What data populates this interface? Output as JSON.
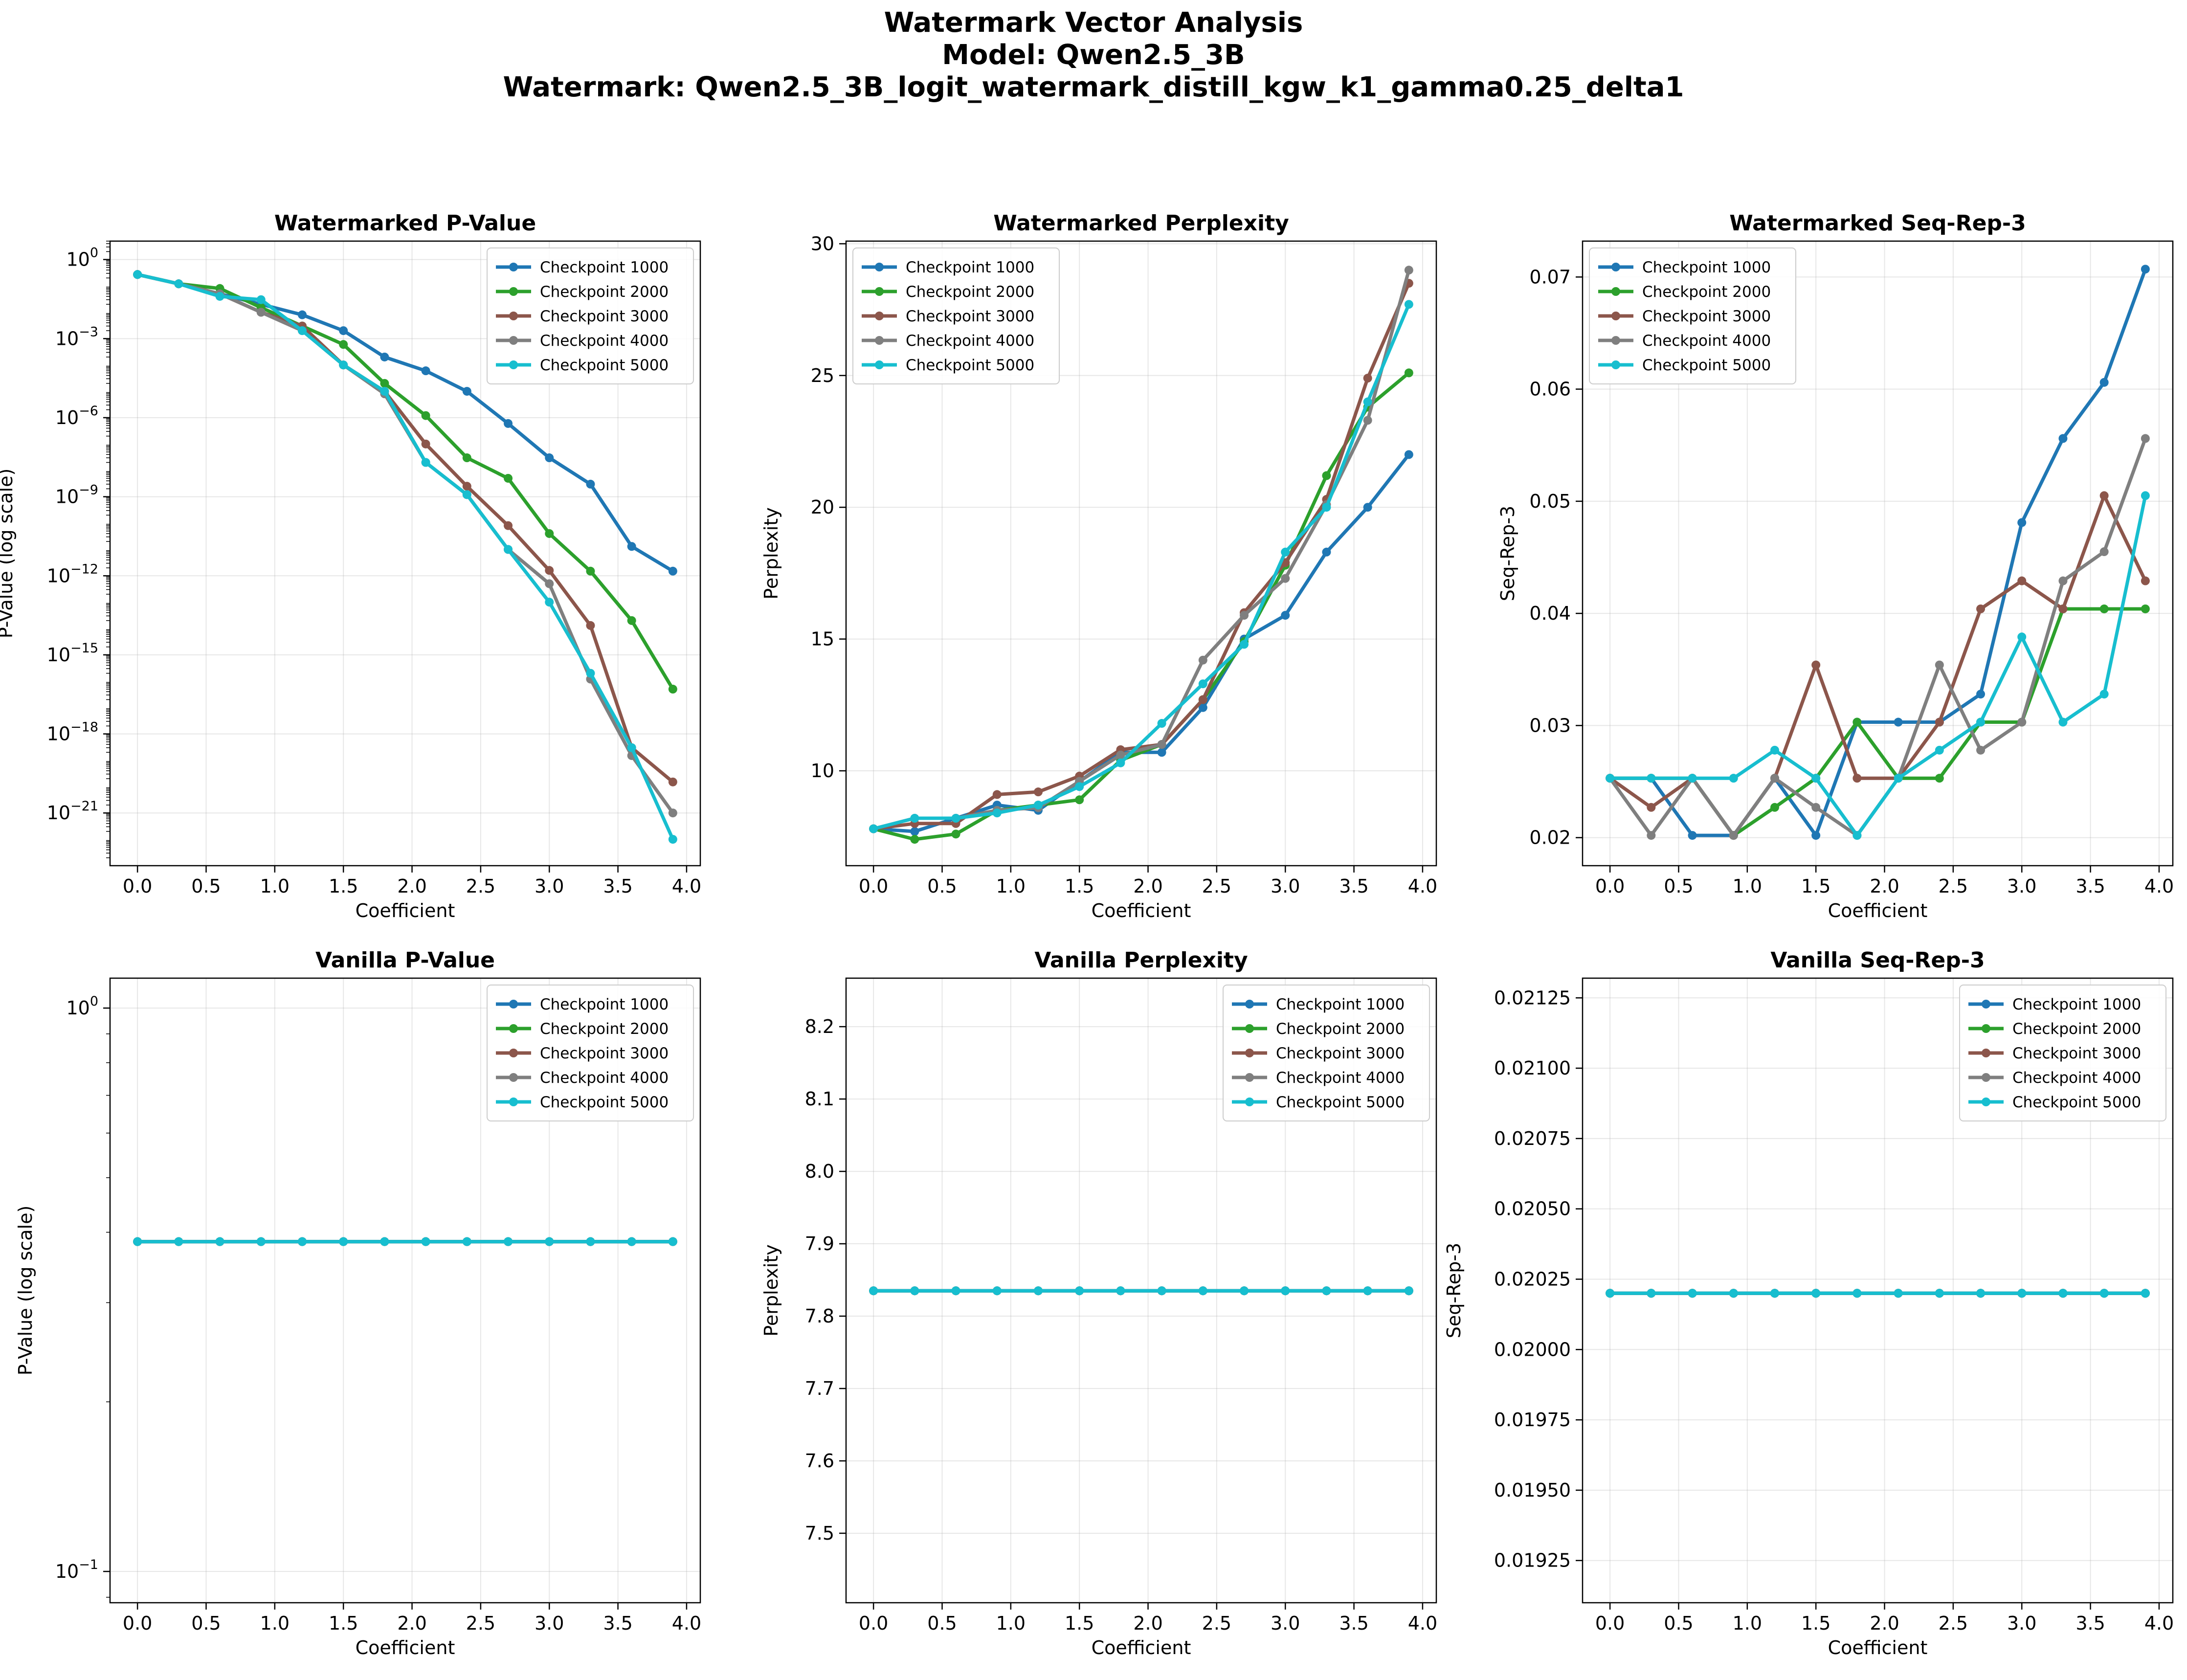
{
  "figure": {
    "title_lines": [
      "Watermark Vector Analysis",
      "Model: Qwen2.5_3B",
      "Watermark: Qwen2.5_3B_logit_watermark_distill_kgw_k1_gamma0.25_delta1"
    ]
  },
  "colors": {
    "Checkpoint 1000": "#1f77b4",
    "Checkpoint 2000": "#2ca02c",
    "Checkpoint 3000": "#8c564b",
    "Checkpoint 4000": "#7f7f7f",
    "Checkpoint 5000": "#17becf"
  },
  "chart_data": [
    {
      "id": "wm-pvalue",
      "type": "line",
      "title": "Watermarked P-Value",
      "xlabel": "Coefficient",
      "ylabel": "P-Value (log scale)",
      "yscale": "log",
      "xlim": [
        -0.2,
        4.1
      ],
      "ylim": [
        1e-23,
        5
      ],
      "xticks": [
        0,
        0.5,
        1,
        1.5,
        2,
        2.5,
        3,
        3.5,
        4
      ],
      "xtick_labels": [
        "0.0",
        "0.5",
        "1.0",
        "1.5",
        "2.0",
        "2.5",
        "3.0",
        "3.5",
        "4.0"
      ],
      "yticks": [
        1,
        0.001,
        1e-06,
        1e-09,
        1e-12,
        1e-15,
        1e-18,
        1e-21
      ],
      "ytick_labels": [
        "10^0",
        "10^-3",
        "10^-6",
        "10^-9",
        "10^-12",
        "10^-15",
        "10^-18",
        "10^-21"
      ],
      "grid": true,
      "legend_position": "top-right",
      "x": [
        0,
        0.3,
        0.6,
        0.9,
        1.2,
        1.5,
        1.8,
        2.1,
        2.4,
        2.7,
        3.0,
        3.3,
        3.6,
        3.9
      ],
      "series": [
        {
          "name": "Checkpoint 1000",
          "values": [
            0.27,
            0.12,
            0.05,
            0.02,
            0.008,
            0.002,
            0.0002,
            6e-05,
            1e-05,
            6e-07,
            3e-08,
            3e-09,
            1.3e-11,
            1.5e-12
          ]
        },
        {
          "name": "Checkpoint 2000",
          "values": [
            0.27,
            0.12,
            0.08,
            0.015,
            0.003,
            0.0006,
            2e-05,
            1.2e-06,
            3e-08,
            5e-09,
            4e-11,
            1.5e-12,
            2e-14,
            5e-17
          ]
        },
        {
          "name": "Checkpoint 3000",
          "values": [
            0.27,
            0.12,
            0.05,
            0.01,
            0.003,
            0.0001,
            1e-05,
            1e-07,
            2.5e-09,
            8e-11,
            1.6e-12,
            1.3e-14,
            3e-19,
            1.5e-20
          ]
        },
        {
          "name": "Checkpoint 4000",
          "values": [
            0.27,
            0.12,
            0.05,
            0.01,
            0.002,
            0.0001,
            8e-06,
            2e-08,
            1.2e-09,
            1e-11,
            5e-13,
            1.2e-16,
            1.5e-19,
            1e-21
          ]
        },
        {
          "name": "Checkpoint 5000",
          "values": [
            0.27,
            0.12,
            0.04,
            0.03,
            0.002,
            0.0001,
            1e-05,
            2e-08,
            1.2e-09,
            1e-11,
            1e-13,
            2e-16,
            3e-19,
            1e-22
          ]
        }
      ]
    },
    {
      "id": "wm-perplexity",
      "type": "line",
      "title": "Watermarked Perplexity",
      "xlabel": "Coefficient",
      "ylabel": "Perplexity",
      "yscale": "linear",
      "xlim": [
        -0.2,
        4.1
      ],
      "ylim": [
        6.4,
        30.1
      ],
      "xticks": [
        0,
        0.5,
        1,
        1.5,
        2,
        2.5,
        3,
        3.5,
        4
      ],
      "xtick_labels": [
        "0.0",
        "0.5",
        "1.0",
        "1.5",
        "2.0",
        "2.5",
        "3.0",
        "3.5",
        "4.0"
      ],
      "yticks": [
        10,
        15,
        20,
        25,
        30
      ],
      "ytick_labels": [
        "10",
        "15",
        "20",
        "25",
        "30"
      ],
      "grid": true,
      "legend_position": "top-left",
      "x": [
        0,
        0.3,
        0.6,
        0.9,
        1.2,
        1.5,
        1.8,
        2.1,
        2.4,
        2.7,
        3.0,
        3.3,
        3.6,
        3.9
      ],
      "series": [
        {
          "name": "Checkpoint 1000",
          "values": [
            7.8,
            7.7,
            8.2,
            8.7,
            8.5,
            9.6,
            10.7,
            10.7,
            12.4,
            15.0,
            15.9,
            18.3,
            20.0,
            22.0
          ]
        },
        {
          "name": "Checkpoint 2000",
          "values": [
            7.8,
            7.4,
            7.6,
            8.5,
            8.7,
            8.9,
            10.4,
            11.0,
            12.7,
            14.9,
            17.8,
            21.2,
            23.8,
            25.1
          ]
        },
        {
          "name": "Checkpoint 3000",
          "values": [
            7.8,
            8.0,
            8.0,
            9.1,
            9.2,
            9.8,
            10.8,
            11.0,
            12.7,
            16.0,
            17.9,
            20.3,
            24.9,
            28.5
          ]
        },
        {
          "name": "Checkpoint 4000",
          "values": [
            7.8,
            8.2,
            8.2,
            8.5,
            8.6,
            9.6,
            10.6,
            11.0,
            14.2,
            15.9,
            17.3,
            20.1,
            23.3,
            29.0
          ]
        },
        {
          "name": "Checkpoint 5000",
          "values": [
            7.8,
            8.2,
            8.2,
            8.4,
            8.7,
            9.4,
            10.3,
            11.8,
            13.3,
            14.8,
            18.3,
            20.0,
            24.0,
            27.7
          ]
        }
      ]
    },
    {
      "id": "wm-seqrep",
      "type": "line",
      "title": "Watermarked Seq-Rep-3",
      "xlabel": "Coefficient",
      "ylabel": "Seq-Rep-3",
      "yscale": "linear",
      "xlim": [
        -0.2,
        4.1
      ],
      "ylim": [
        0.0175,
        0.0732
      ],
      "xticks": [
        0,
        0.5,
        1,
        1.5,
        2,
        2.5,
        3,
        3.5,
        4
      ],
      "xtick_labels": [
        "0.0",
        "0.5",
        "1.0",
        "1.5",
        "2.0",
        "2.5",
        "3.0",
        "3.5",
        "4.0"
      ],
      "yticks": [
        0.02,
        0.03,
        0.04,
        0.05,
        0.06,
        0.07
      ],
      "ytick_labels": [
        "0.02",
        "0.03",
        "0.04",
        "0.05",
        "0.06",
        "0.07"
      ],
      "grid": true,
      "legend_position": "top-left",
      "x": [
        0,
        0.3,
        0.6,
        0.9,
        1.2,
        1.5,
        1.8,
        2.1,
        2.4,
        2.7,
        3.0,
        3.3,
        3.6,
        3.9
      ],
      "series": [
        {
          "name": "Checkpoint 1000",
          "values": [
            0.0253,
            0.0253,
            0.0202,
            0.0202,
            0.0253,
            0.0202,
            0.0303,
            0.0303,
            0.0303,
            0.0328,
            0.0481,
            0.0556,
            0.0606,
            0.0707
          ]
        },
        {
          "name": "Checkpoint 2000",
          "values": [
            0.0253,
            0.0253,
            0.0253,
            0.0202,
            0.0227,
            0.0253,
            0.0303,
            0.0253,
            0.0253,
            0.0303,
            0.0303,
            0.0404,
            0.0404,
            0.0404
          ]
        },
        {
          "name": "Checkpoint 3000",
          "values": [
            0.0253,
            0.0227,
            0.0253,
            0.0202,
            0.0253,
            0.0354,
            0.0253,
            0.0253,
            0.0303,
            0.0404,
            0.0429,
            0.0404,
            0.0505,
            0.0429
          ]
        },
        {
          "name": "Checkpoint 4000",
          "values": [
            0.0253,
            0.0202,
            0.0253,
            0.0202,
            0.0253,
            0.0227,
            0.0202,
            0.0253,
            0.0354,
            0.0278,
            0.0303,
            0.0429,
            0.0455,
            0.0556
          ]
        },
        {
          "name": "Checkpoint 5000",
          "values": [
            0.0253,
            0.0253,
            0.0253,
            0.0253,
            0.0278,
            0.0253,
            0.0202,
            0.0253,
            0.0278,
            0.0303,
            0.0379,
            0.0303,
            0.0328,
            0.0505
          ]
        }
      ]
    },
    {
      "id": "van-pvalue",
      "type": "line",
      "title": "Vanilla P-Value",
      "xlabel": "Coefficient",
      "ylabel": "P-Value (log scale)",
      "yscale": "log",
      "xlim": [
        -0.2,
        4.1
      ],
      "ylim": [
        0.088,
        1.13
      ],
      "xticks": [
        0,
        0.5,
        1,
        1.5,
        2,
        2.5,
        3,
        3.5,
        4
      ],
      "xtick_labels": [
        "0.0",
        "0.5",
        "1.0",
        "1.5",
        "2.0",
        "2.5",
        "3.0",
        "3.5",
        "4.0"
      ],
      "yticks": [
        1,
        0.1
      ],
      "ytick_labels": [
        "10^0",
        "10^-1"
      ],
      "grid": true,
      "legend_position": "top-right",
      "x": [
        0,
        0.3,
        0.6,
        0.9,
        1.2,
        1.5,
        1.8,
        2.1,
        2.4,
        2.7,
        3.0,
        3.3,
        3.6,
        3.9
      ],
      "series": [
        {
          "name": "Checkpoint 1000",
          "values": [
            0.385,
            0.385,
            0.385,
            0.385,
            0.385,
            0.385,
            0.385,
            0.385,
            0.385,
            0.385,
            0.385,
            0.385,
            0.385,
            0.385
          ]
        },
        {
          "name": "Checkpoint 2000",
          "values": [
            0.385,
            0.385,
            0.385,
            0.385,
            0.385,
            0.385,
            0.385,
            0.385,
            0.385,
            0.385,
            0.385,
            0.385,
            0.385,
            0.385
          ]
        },
        {
          "name": "Checkpoint 3000",
          "values": [
            0.385,
            0.385,
            0.385,
            0.385,
            0.385,
            0.385,
            0.385,
            0.385,
            0.385,
            0.385,
            0.385,
            0.385,
            0.385,
            0.385
          ]
        },
        {
          "name": "Checkpoint 4000",
          "values": [
            0.385,
            0.385,
            0.385,
            0.385,
            0.385,
            0.385,
            0.385,
            0.385,
            0.385,
            0.385,
            0.385,
            0.385,
            0.385,
            0.385
          ]
        },
        {
          "name": "Checkpoint 5000",
          "values": [
            0.385,
            0.385,
            0.385,
            0.385,
            0.385,
            0.385,
            0.385,
            0.385,
            0.385,
            0.385,
            0.385,
            0.385,
            0.385,
            0.385
          ]
        }
      ]
    },
    {
      "id": "van-perplexity",
      "type": "line",
      "title": "Vanilla Perplexity",
      "xlabel": "Coefficient",
      "ylabel": "Perplexity",
      "yscale": "linear",
      "xlim": [
        -0.2,
        4.1
      ],
      "ylim": [
        7.404,
        8.267
      ],
      "xticks": [
        0,
        0.5,
        1,
        1.5,
        2,
        2.5,
        3,
        3.5,
        4
      ],
      "xtick_labels": [
        "0.0",
        "0.5",
        "1.0",
        "1.5",
        "2.0",
        "2.5",
        "3.0",
        "3.5",
        "4.0"
      ],
      "yticks": [
        7.5,
        7.6,
        7.7,
        7.8,
        7.9,
        8.0,
        8.1,
        8.2
      ],
      "ytick_labels": [
        "7.5",
        "7.6",
        "7.7",
        "7.8",
        "7.9",
        "8.0",
        "8.1",
        "8.2"
      ],
      "grid": true,
      "legend_position": "top-right",
      "x": [
        0,
        0.3,
        0.6,
        0.9,
        1.2,
        1.5,
        1.8,
        2.1,
        2.4,
        2.7,
        3.0,
        3.3,
        3.6,
        3.9
      ],
      "series": [
        {
          "name": "Checkpoint 1000",
          "values": [
            7.835,
            7.835,
            7.835,
            7.835,
            7.835,
            7.835,
            7.835,
            7.835,
            7.835,
            7.835,
            7.835,
            7.835,
            7.835,
            7.835
          ]
        },
        {
          "name": "Checkpoint 2000",
          "values": [
            7.835,
            7.835,
            7.835,
            7.835,
            7.835,
            7.835,
            7.835,
            7.835,
            7.835,
            7.835,
            7.835,
            7.835,
            7.835,
            7.835
          ]
        },
        {
          "name": "Checkpoint 3000",
          "values": [
            7.835,
            7.835,
            7.835,
            7.835,
            7.835,
            7.835,
            7.835,
            7.835,
            7.835,
            7.835,
            7.835,
            7.835,
            7.835,
            7.835
          ]
        },
        {
          "name": "Checkpoint 4000",
          "values": [
            7.835,
            7.835,
            7.835,
            7.835,
            7.835,
            7.835,
            7.835,
            7.835,
            7.835,
            7.835,
            7.835,
            7.835,
            7.835,
            7.835
          ]
        },
        {
          "name": "Checkpoint 5000",
          "values": [
            7.835,
            7.835,
            7.835,
            7.835,
            7.835,
            7.835,
            7.835,
            7.835,
            7.835,
            7.835,
            7.835,
            7.835,
            7.835,
            7.835
          ]
        }
      ]
    },
    {
      "id": "van-seqrep",
      "type": "line",
      "title": "Vanilla Seq-Rep-3",
      "xlabel": "Coefficient",
      "ylabel": "Seq-Rep-3",
      "yscale": "linear",
      "xlim": [
        -0.2,
        4.1
      ],
      "ylim": [
        0.0191,
        0.02132
      ],
      "xticks": [
        0,
        0.5,
        1,
        1.5,
        2,
        2.5,
        3,
        3.5,
        4
      ],
      "xtick_labels": [
        "0.0",
        "0.5",
        "1.0",
        "1.5",
        "2.0",
        "2.5",
        "3.0",
        "3.5",
        "4.0"
      ],
      "yticks": [
        0.01925,
        0.0195,
        0.01975,
        0.02,
        0.02025,
        0.0205,
        0.02075,
        0.021,
        0.02125
      ],
      "ytick_labels": [
        "0.01925",
        "0.01950",
        "0.01975",
        "0.02000",
        "0.02025",
        "0.02050",
        "0.02075",
        "0.02100",
        "0.02125"
      ],
      "grid": true,
      "legend_position": "top-right",
      "x": [
        0,
        0.3,
        0.6,
        0.9,
        1.2,
        1.5,
        1.8,
        2.1,
        2.4,
        2.7,
        3.0,
        3.3,
        3.6,
        3.9
      ],
      "series": [
        {
          "name": "Checkpoint 1000",
          "values": [
            0.0202,
            0.0202,
            0.0202,
            0.0202,
            0.0202,
            0.0202,
            0.0202,
            0.0202,
            0.0202,
            0.0202,
            0.0202,
            0.0202,
            0.0202,
            0.0202
          ]
        },
        {
          "name": "Checkpoint 2000",
          "values": [
            0.0202,
            0.0202,
            0.0202,
            0.0202,
            0.0202,
            0.0202,
            0.0202,
            0.0202,
            0.0202,
            0.0202,
            0.0202,
            0.0202,
            0.0202,
            0.0202
          ]
        },
        {
          "name": "Checkpoint 3000",
          "values": [
            0.0202,
            0.0202,
            0.0202,
            0.0202,
            0.0202,
            0.0202,
            0.0202,
            0.0202,
            0.0202,
            0.0202,
            0.0202,
            0.0202,
            0.0202,
            0.0202
          ]
        },
        {
          "name": "Checkpoint 4000",
          "values": [
            0.0202,
            0.0202,
            0.0202,
            0.0202,
            0.0202,
            0.0202,
            0.0202,
            0.0202,
            0.0202,
            0.0202,
            0.0202,
            0.0202,
            0.0202,
            0.0202
          ]
        },
        {
          "name": "Checkpoint 5000",
          "values": [
            0.0202,
            0.0202,
            0.0202,
            0.0202,
            0.0202,
            0.0202,
            0.0202,
            0.0202,
            0.0202,
            0.0202,
            0.0202,
            0.0202,
            0.0202,
            0.0202
          ]
        }
      ]
    }
  ]
}
